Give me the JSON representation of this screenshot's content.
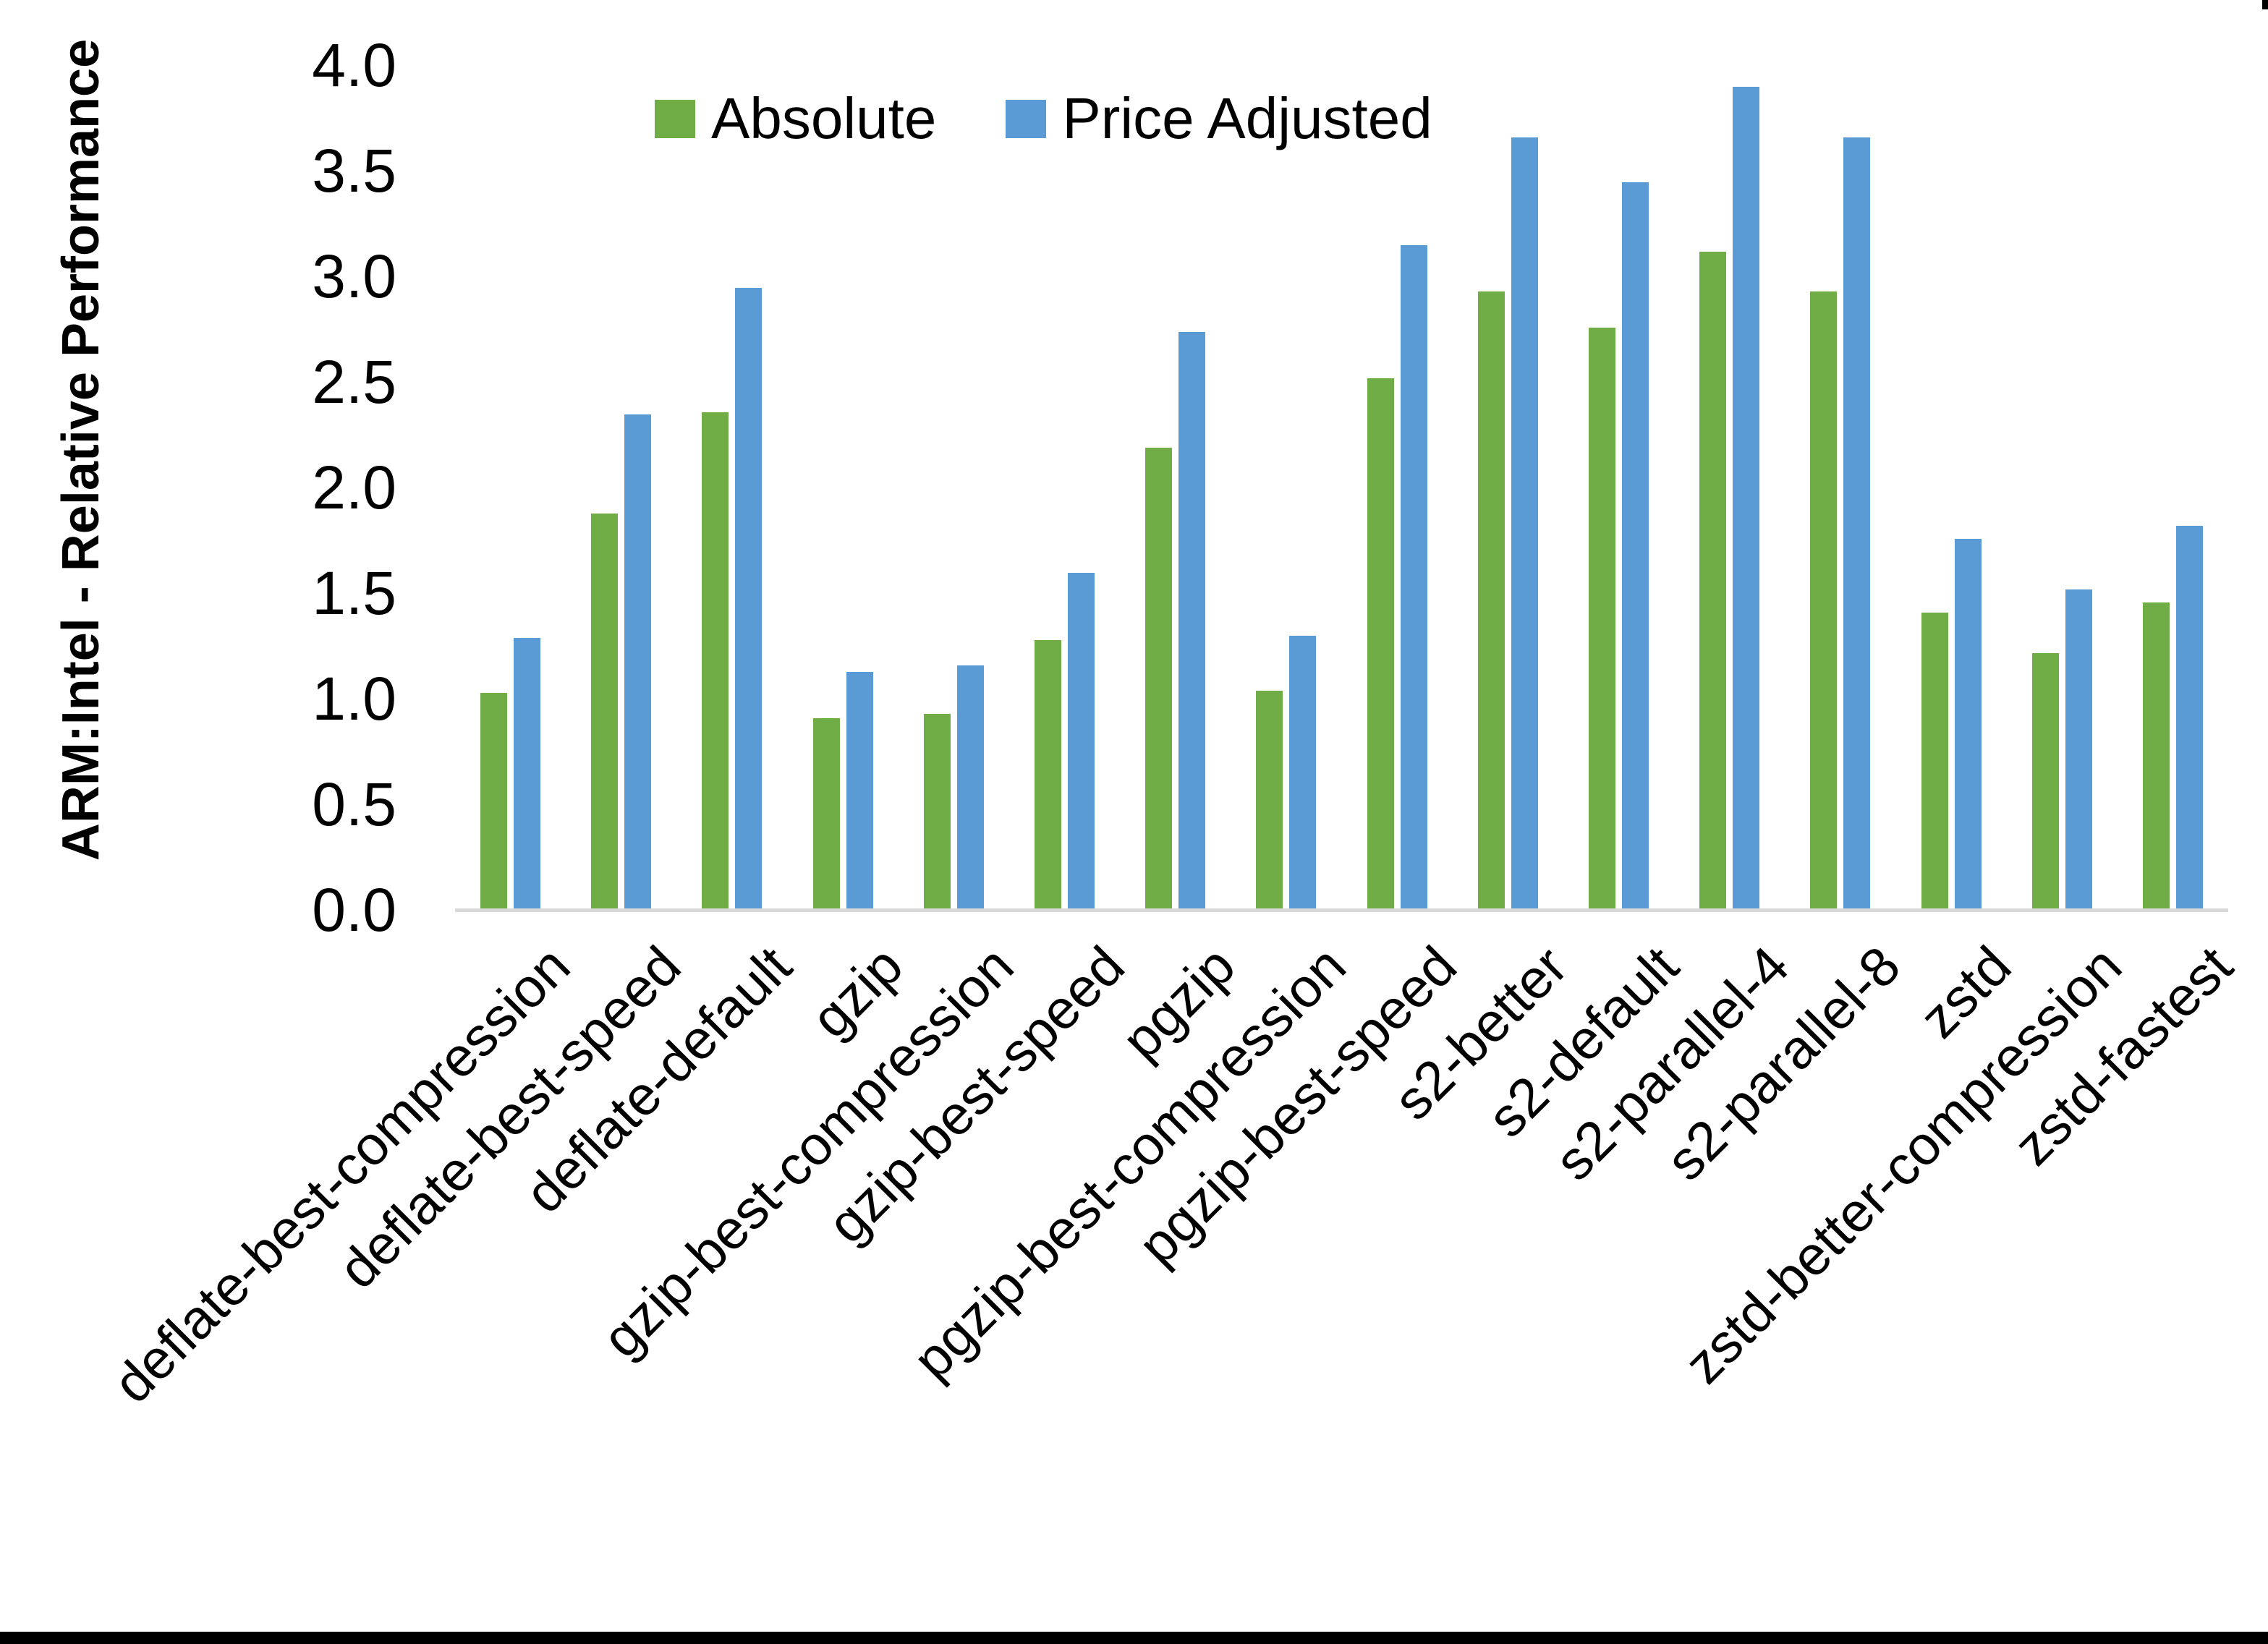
{
  "chart_data": {
    "type": "bar",
    "title": "",
    "xlabel": "",
    "ylabel": "ARM:Intel - Relative Performance",
    "ylim": [
      0.0,
      4.0
    ],
    "ytick_step": 0.5,
    "ytick_labels": [
      "0.0",
      "0.5",
      "1.0",
      "1.5",
      "2.0",
      "2.5",
      "3.0",
      "3.5",
      "4.0"
    ],
    "grid": false,
    "legend_position": "top-center",
    "x_label_rotation_degrees": 45,
    "axis_line_color": "#d9d9d9",
    "text_color": "#000000",
    "categories": [
      "deflate-best-compression",
      "deflate-best-speed",
      "deflate-default",
      "gzip",
      "gzip-best-compression",
      "gzip-best-speed",
      "pgzip",
      "pgzip-best-compression",
      "pgzip-best-speed",
      "s2-better",
      "s2-default",
      "s2-parallel-4",
      "s2-parallel-8",
      "zstd",
      "zstd-better-compression",
      "zstd-fastest"
    ],
    "series": [
      {
        "name": "Absolute",
        "color": "#70AD47",
        "values": [
          1.02,
          1.87,
          2.35,
          0.9,
          0.92,
          1.27,
          2.18,
          1.03,
          2.51,
          2.92,
          2.75,
          3.11,
          2.92,
          1.4,
          1.21,
          1.45
        ]
      },
      {
        "name": "Price Adjusted",
        "color": "#5B9BD5",
        "values": [
          1.28,
          2.34,
          2.94,
          1.12,
          1.15,
          1.59,
          2.73,
          1.29,
          3.14,
          3.65,
          3.44,
          3.89,
          3.65,
          1.75,
          1.51,
          1.81
        ]
      }
    ]
  },
  "decorations": {
    "bottom_border_color": "#000000",
    "top_right_artifact_color": "#000000"
  }
}
